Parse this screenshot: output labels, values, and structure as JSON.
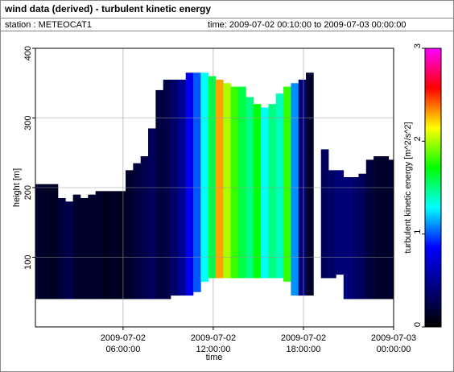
{
  "chart_data": {
    "type": "heatmap",
    "title": "wind data (derived) - turbulent kinetic energy",
    "station": "station : METEOCAT1",
    "period": "time: 2009-07-02 00:10:00 to 2009-07-03 00:00:00",
    "xlabel": "time",
    "ylabel": "height [m]",
    "colorbar_label": "turbulent kinetic energy [m^2/s^2]",
    "xlim": [
      "2009-07-02 00:10:00",
      "2009-07-03 00:00:00"
    ],
    "xticks": [
      {
        "value": "2009-07-02 06:00:00",
        "label": "2009-07-02 06:00:00"
      },
      {
        "value": "2009-07-02 12:00:00",
        "label": "2009-07-02 12:00:00"
      },
      {
        "value": "2009-07-02 18:00:00",
        "label": "2009-07-02 18:00:00"
      },
      {
        "value": "2009-07-03 00:00:00",
        "label": "2009-07-03 00:00:00"
      }
    ],
    "ylim": [
      0,
      400
    ],
    "yticks": [
      100,
      200,
      300,
      400
    ],
    "clim": [
      0,
      3
    ],
    "cticks": [
      0,
      1,
      2,
      3
    ],
    "colormap": [
      "#000000",
      "#000080",
      "#0000ff",
      "#00ffff",
      "#00ff00",
      "#ffff00",
      "#ff0000",
      "#ff00ff"
    ],
    "grid": true,
    "x": [
      "2009-07-02 00:10:00",
      "2009-07-02 00:40:00",
      "2009-07-02 01:10:00",
      "2009-07-02 01:40:00",
      "2009-07-02 02:10:00",
      "2009-07-02 02:40:00",
      "2009-07-02 03:10:00",
      "2009-07-02 03:40:00",
      "2009-07-02 04:10:00",
      "2009-07-02 04:40:00",
      "2009-07-02 05:10:00",
      "2009-07-02 05:40:00",
      "2009-07-02 06:10:00",
      "2009-07-02 06:40:00",
      "2009-07-02 07:10:00",
      "2009-07-02 07:40:00",
      "2009-07-02 08:10:00",
      "2009-07-02 08:40:00",
      "2009-07-02 09:10:00",
      "2009-07-02 09:40:00",
      "2009-07-02 10:10:00",
      "2009-07-02 10:40:00",
      "2009-07-02 11:10:00",
      "2009-07-02 11:40:00",
      "2009-07-02 12:10:00",
      "2009-07-02 12:40:00",
      "2009-07-02 13:10:00",
      "2009-07-02 13:40:00",
      "2009-07-02 14:10:00",
      "2009-07-02 14:40:00",
      "2009-07-02 15:10:00",
      "2009-07-02 15:40:00",
      "2009-07-02 16:10:00",
      "2009-07-02 16:40:00",
      "2009-07-02 17:10:00",
      "2009-07-02 17:40:00",
      "2009-07-02 18:10:00",
      "2009-07-02 18:40:00",
      "2009-07-02 19:10:00",
      "2009-07-02 19:40:00",
      "2009-07-02 20:10:00",
      "2009-07-02 20:40:00",
      "2009-07-02 21:10:00",
      "2009-07-02 21:40:00",
      "2009-07-02 22:10:00",
      "2009-07-02 22:40:00",
      "2009-07-02 23:10:00",
      "2009-07-02 23:40:00"
    ],
    "tops": [
      205,
      205,
      205,
      185,
      180,
      190,
      185,
      190,
      195,
      195,
      195,
      195,
      225,
      235,
      245,
      285,
      340,
      355,
      355,
      355,
      365,
      365,
      365,
      360,
      355,
      350,
      345,
      345,
      330,
      320,
      315,
      320,
      335,
      345,
      350,
      355,
      365,
      null,
      255,
      225,
      225,
      215,
      215,
      220,
      240,
      245,
      245,
      240
    ],
    "bottoms": [
      40,
      40,
      40,
      40,
      40,
      40,
      40,
      40,
      40,
      40,
      40,
      40,
      40,
      40,
      40,
      40,
      40,
      40,
      45,
      45,
      45,
      50,
      65,
      70,
      70,
      70,
      70,
      70,
      70,
      70,
      70,
      70,
      70,
      65,
      45,
      45,
      45,
      null,
      70,
      70,
      75,
      40,
      40,
      40,
      40,
      40,
      40,
      40
    ],
    "values": [
      0.15,
      0.12,
      0.12,
      0.2,
      0.25,
      0.15,
      0.15,
      0.15,
      0.15,
      0.1,
      0.12,
      0.1,
      0.15,
      0.2,
      0.25,
      0.3,
      0.2,
      0.25,
      0.35,
      0.5,
      0.8,
      1.0,
      1.3,
      1.6,
      2.3,
      2.0,
      1.8,
      1.6,
      1.5,
      1.7,
      1.3,
      1.5,
      1.4,
      1.8,
      1.1,
      0.4,
      0.15,
      null,
      0.3,
      0.35,
      0.4,
      0.4,
      0.35,
      0.3,
      0.2,
      0.15,
      0.15,
      0.15
    ]
  }
}
